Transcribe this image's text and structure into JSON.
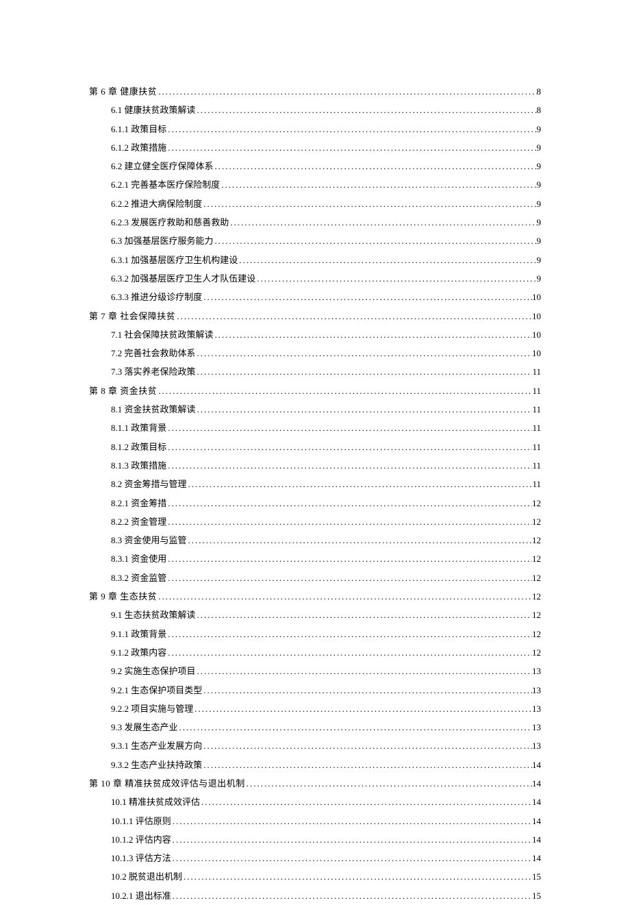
{
  "text_color": "#000000",
  "background_color": "#ffffff",
  "font_family": "SimSun",
  "entries": [
    {
      "level": 1,
      "text": "第 6 章  健康扶贫",
      "page": "8"
    },
    {
      "level": 2,
      "text": "6.1 健康扶贫政策解读",
      "page": "8"
    },
    {
      "level": 3,
      "text": "6.1.1 政策目标",
      "page": "9"
    },
    {
      "level": 3,
      "text": "6.1.2 政策措施",
      "page": "9"
    },
    {
      "level": 2,
      "text": "6.2 建立健全医疗保障体系",
      "page": "9"
    },
    {
      "level": 3,
      "text": "6.2.1 完善基本医疗保险制度",
      "page": "9"
    },
    {
      "level": 3,
      "text": "6.2.2 推进大病保险制度",
      "page": "9"
    },
    {
      "level": 3,
      "text": "6.2.3 发展医疗救助和慈善救助",
      "page": "9"
    },
    {
      "level": 2,
      "text": "6.3 加强基层医疗服务能力",
      "page": "9"
    },
    {
      "level": 3,
      "text": "6.3.1 加强基层医疗卫生机构建设",
      "page": "9"
    },
    {
      "level": 3,
      "text": "6.3.2 加强基层医疗卫生人才队伍建设",
      "page": "9"
    },
    {
      "level": 3,
      "text": "6.3.3 推进分级诊疗制度",
      "page": "10"
    },
    {
      "level": 1,
      "text": "第 7 章 社会保障扶贫",
      "page": "10"
    },
    {
      "level": 2,
      "text": "7.1 社会保障扶贫政策解读",
      "page": "10"
    },
    {
      "level": 2,
      "text": "7.2 完善社会救助体系",
      "page": "10"
    },
    {
      "level": 2,
      "text": "7.3 落实养老保险政策",
      "page": "11"
    },
    {
      "level": 1,
      "text": "第 8 章 资金扶贫",
      "page": "11"
    },
    {
      "level": 2,
      "text": "8.1 资金扶贫政策解读",
      "page": "11"
    },
    {
      "level": 3,
      "text": "8.1.1 政策背景",
      "page": "11"
    },
    {
      "level": 3,
      "text": "8.1.2 政策目标",
      "page": "11"
    },
    {
      "level": 3,
      "text": "8.1.3 政策措施",
      "page": "11"
    },
    {
      "level": 2,
      "text": "8.2 资金筹措与管理",
      "page": "11"
    },
    {
      "level": 3,
      "text": "8.2.1 资金筹措",
      "page": "12"
    },
    {
      "level": 3,
      "text": "8.2.2 资金管理",
      "page": "12"
    },
    {
      "level": 2,
      "text": "8.3 资金使用与监管",
      "page": "12"
    },
    {
      "level": 3,
      "text": "8.3.1 资金使用",
      "page": "12"
    },
    {
      "level": 3,
      "text": "8.3.2 资金监管",
      "page": "12"
    },
    {
      "level": 1,
      "text": "第 9 章 生态扶贫",
      "page": "12"
    },
    {
      "level": 2,
      "text": "9.1 生态扶贫政策解读",
      "page": "12"
    },
    {
      "level": 3,
      "text": "9.1.1 政策背景",
      "page": "12"
    },
    {
      "level": 3,
      "text": "9.1.2 政策内容",
      "page": "12"
    },
    {
      "level": 2,
      "text": "9.2 实施生态保护项目",
      "page": "13"
    },
    {
      "level": 3,
      "text": "9.2.1 生态保护项目类型",
      "page": "13"
    },
    {
      "level": 3,
      "text": "9.2.2 项目实施与管理",
      "page": "13"
    },
    {
      "level": 2,
      "text": "9.3 发展生态产业",
      "page": "13"
    },
    {
      "level": 3,
      "text": "9.3.1 生态产业发展方向",
      "page": "13"
    },
    {
      "level": 3,
      "text": "9.3.2 生态产业扶持政策",
      "page": "14"
    },
    {
      "level": 1,
      "text": "第 10 章 精准扶贫成效评估与退出机制",
      "page": "14"
    },
    {
      "level": 2,
      "text": "10.1 精准扶贫成效评估",
      "page": "14"
    },
    {
      "level": 3,
      "text": "10.1.1 评估原则",
      "page": "14"
    },
    {
      "level": 3,
      "text": "10.1.2 评估内容",
      "page": "14"
    },
    {
      "level": 3,
      "text": "10.1.3 评估方法",
      "page": "14"
    },
    {
      "level": 2,
      "text": "10.2 脱贫退出机制",
      "page": "15"
    },
    {
      "level": 3,
      "text": "10.2.1 退出标准",
      "page": "15"
    }
  ]
}
